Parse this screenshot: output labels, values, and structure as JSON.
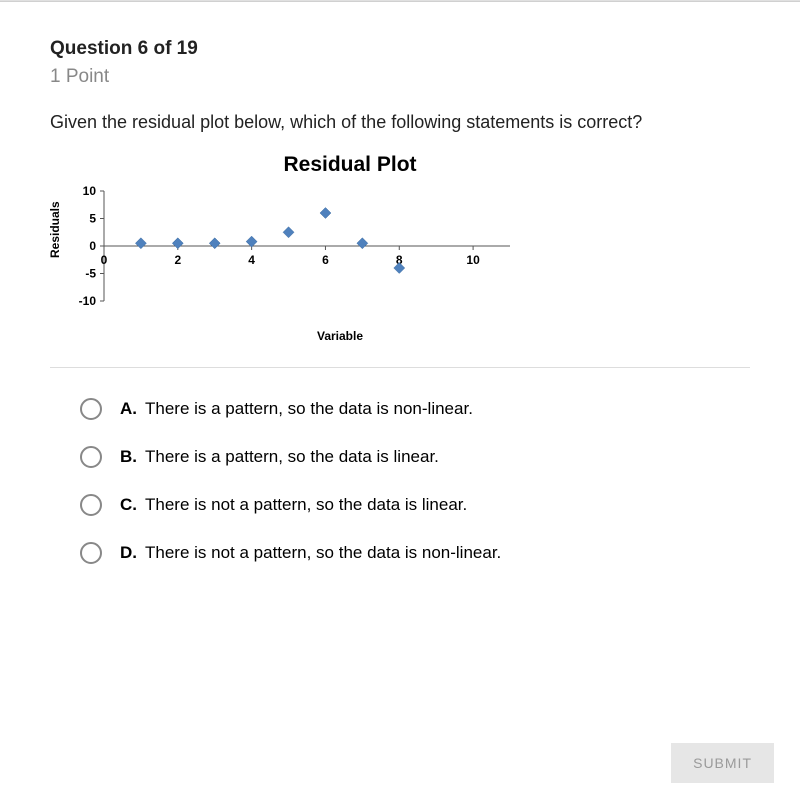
{
  "header": {
    "question_label": "Question 6 of 19",
    "points": "1 Point"
  },
  "stem": "Given the residual plot below, which of the following statements is correct?",
  "chart": {
    "title": "Residual Plot",
    "type": "scatter",
    "ylabel": "Residuals",
    "xlabel": "Variable",
    "xlim": [
      0,
      11
    ],
    "ylim": [
      -10,
      10
    ],
    "xtick_step": 2,
    "xticks": [
      0,
      2,
      4,
      6,
      8,
      10
    ],
    "yticks": [
      -10,
      -5,
      0,
      5,
      10
    ],
    "marker": "diamond",
    "marker_size": 11,
    "marker_color": "#4f81bd",
    "axis_color": "#555555",
    "tick_fontsize": 12,
    "points": [
      {
        "x": 1,
        "y": 0.5
      },
      {
        "x": 2,
        "y": 0.5
      },
      {
        "x": 3,
        "y": 0.5
      },
      {
        "x": 4,
        "y": 0.8
      },
      {
        "x": 5,
        "y": 2.5
      },
      {
        "x": 6,
        "y": 6
      },
      {
        "x": 7,
        "y": 0.5
      },
      {
        "x": 8,
        "y": -4
      }
    ]
  },
  "options": [
    {
      "letter": "A.",
      "text": "There is a pattern, so the data is non-linear."
    },
    {
      "letter": "B.",
      "text": "There is a pattern, so the data is linear."
    },
    {
      "letter": "C.",
      "text": "There is not a pattern, so the data is linear."
    },
    {
      "letter": "D.",
      "text": "There is not a pattern, so the data is non-linear."
    }
  ],
  "submit_label": "SUBMIT"
}
